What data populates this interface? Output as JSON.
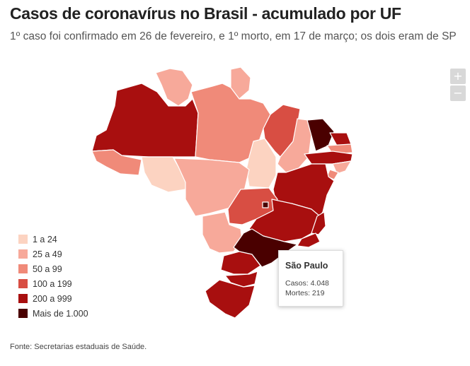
{
  "header": {
    "title": "Casos de coronavírus no Brasil - acumulado por UF",
    "subtitle": "1º caso foi confirmado em 26 de fevereiro, e 1º morto, em 17 de março; os dois eram de SP"
  },
  "zoom": {
    "in_label": "+",
    "out_label": "−"
  },
  "legend": {
    "items": [
      {
        "label": "1 a 24",
        "color": "#fcd3c1"
      },
      {
        "label": "25 a 49",
        "color": "#f7a99a"
      },
      {
        "label": "50 a 99",
        "color": "#f08a79"
      },
      {
        "label": "100 a 199",
        "color": "#d84e43"
      },
      {
        "label": "200 a 999",
        "color": "#a80f0f"
      },
      {
        "label": "Mais de 1.000",
        "color": "#4a0000"
      }
    ]
  },
  "tooltip": {
    "state": "São Paulo",
    "cases_line": "Casos: 4.048",
    "deaths_line": "Mortes: 219"
  },
  "source": "Fonte: Secretarias estaduais de Saúde.",
  "colors": {
    "border": "#ffffff"
  }
}
